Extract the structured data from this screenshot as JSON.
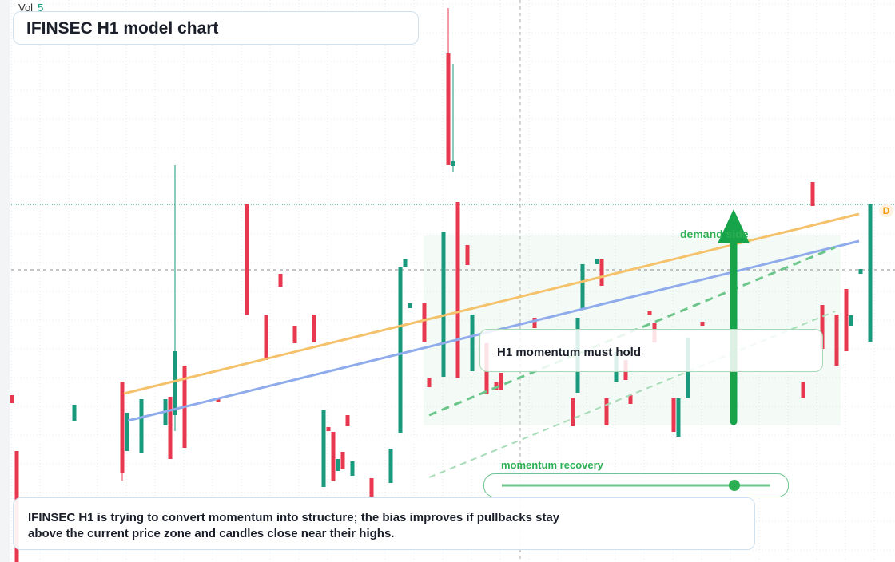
{
  "header": {
    "title": "IFINSEC H1 model chart",
    "volume_label": "Vol",
    "volume_value": "5"
  },
  "annotations": {
    "zone": "demand side",
    "hold": "H1 momentum must hold",
    "recovery": "momentum recovery",
    "marker": "D",
    "summary": "IFINSEC H1 is trying to convert momentum into structure; the bias improves if pullbacks stay above the current price zone and candles close near their highs."
  },
  "chart_data": {
    "type": "candlestick",
    "xlim": [
      0,
      184
    ],
    "ylim": [
      0,
      70.4
    ],
    "grid": true,
    "up_color": "#1a9a7c",
    "down_color": "#e8384f",
    "x": [
      0,
      1,
      13,
      23,
      24,
      27,
      32,
      33,
      34,
      36,
      43,
      49,
      53,
      56,
      59,
      63,
      65,
      66,
      67,
      68,
      69,
      70,
      71,
      75,
      79,
      81,
      82,
      83,
      86,
      87,
      90,
      91,
      92,
      93,
      95,
      96,
      99,
      101,
      102,
      109,
      117,
      118,
      119,
      122,
      123,
      124,
      126,
      128,
      129,
      133,
      134,
      138,
      139,
      141,
      144,
      165,
      167,
      169,
      172,
      174,
      175,
      177,
      179
    ],
    "open": [
      20.9,
      13.9,
      17.7,
      22.6,
      13.9,
      13.6,
      17.1,
      20.7,
      18.4,
      24.6,
      20.5,
      44.8,
      30.9,
      36.1,
      29.6,
      31.0,
      9.4,
      16.9,
      16.3,
      11.4,
      13.8,
      18.4,
      10.8,
      10.5,
      9.9,
      16.2,
      37.0,
      31.8,
      32.4,
      23.0,
      23.2,
      63.7,
      49.6,
      45.1,
      39.7,
      23.9,
      27.4,
      22.5,
      23.7,
      30.6,
      20.6,
      21.2,
      31.7,
      37.3,
      38.0,
      20.5,
      22.6,
      25.3,
      20.9,
      31.5,
      29.9,
      20.5,
      15.7,
      20.5,
      30.1,
      22.6,
      47.6,
      32.2,
      31.0,
      34.2,
      29.6,
      36.1,
      27.6
    ],
    "high": [
      20.9,
      13.9,
      19.7,
      22.6,
      18.7,
      20.4,
      20.4,
      20.7,
      49.7,
      24.6,
      20.5,
      44.8,
      30.9,
      36.1,
      29.6,
      31.0,
      19.0,
      16.9,
      16.3,
      12.9,
      13.8,
      18.4,
      12.6,
      10.5,
      14.2,
      37.0,
      37.9,
      32.4,
      32.4,
      23.0,
      41.3,
      69.4,
      62.4,
      45.1,
      39.7,
      31.0,
      27.4,
      22.5,
      23.7,
      30.6,
      20.6,
      30.6,
      37.3,
      38.0,
      38.0,
      20.5,
      26.3,
      25.3,
      20.9,
      31.5,
      29.9,
      20.5,
      20.5,
      28.1,
      30.1,
      22.6,
      47.6,
      32.2,
      31.0,
      34.2,
      30.9,
      36.7,
      44.8
    ],
    "low": [
      19.9,
      0.0,
      17.7,
      10.2,
      13.9,
      13.6,
      17.1,
      12.9,
      16.4,
      14.3,
      20.0,
      31.0,
      25.3,
      34.5,
      27.4,
      27.5,
      9.4,
      16.4,
      10.1,
      11.4,
      11.6,
      17.0,
      10.8,
      8.2,
      9.9,
      16.2,
      37.0,
      31.8,
      27.6,
      21.9,
      23.2,
      49.7,
      48.8,
      23.1,
      37.2,
      23.9,
      21.0,
      21.5,
      21.6,
      29.3,
      17.0,
      21.2,
      31.7,
      37.3,
      34.6,
      17.1,
      22.6,
      22.8,
      19.8,
      30.9,
      27.5,
      16.3,
      15.7,
      20.5,
      29.6,
      20.5,
      44.6,
      26.7,
      24.6,
      26.4,
      29.6,
      36.1,
      27.6
    ],
    "close": [
      19.9,
      0.0,
      19.7,
      11.2,
      18.7,
      20.4,
      20.4,
      12.9,
      26.4,
      14.3,
      20.0,
      31.0,
      25.3,
      34.5,
      27.4,
      27.5,
      19.0,
      16.4,
      10.1,
      12.9,
      11.6,
      17.0,
      12.6,
      8.2,
      14.2,
      37.0,
      37.9,
      32.4,
      27.6,
      21.9,
      41.3,
      49.7,
      50.2,
      23.1,
      37.2,
      31.0,
      21.0,
      21.5,
      21.6,
      29.3,
      17.0,
      30.6,
      37.3,
      38.0,
      34.6,
      17.1,
      26.3,
      22.8,
      19.8,
      30.9,
      27.5,
      16.3,
      20.5,
      28.1,
      29.6,
      20.5,
      44.6,
      26.7,
      24.6,
      26.4,
      30.9,
      36.7,
      44.8
    ]
  }
}
